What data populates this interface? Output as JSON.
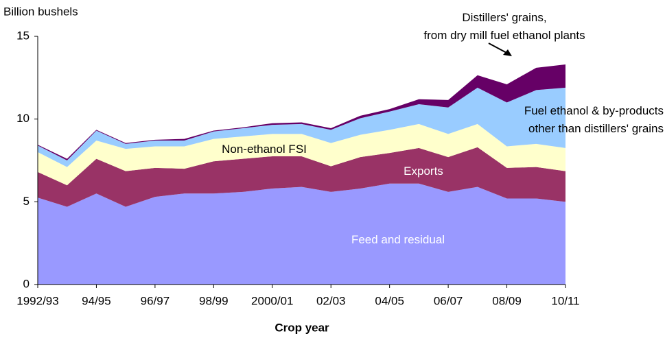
{
  "chart_data": {
    "type": "stacked-area",
    "y_label": "Billion bushels",
    "x_label": "Crop year",
    "categories": [
      "1992/93",
      null,
      "94/95",
      null,
      "96/97",
      null,
      "98/99",
      null,
      "2000/01",
      null,
      "02/03",
      null,
      "04/05",
      null,
      "06/07",
      null,
      "08/09",
      null,
      "10/11"
    ],
    "ylim": [
      0,
      15
    ],
    "yticks": [
      0,
      5,
      10,
      15
    ],
    "grid": false,
    "series": [
      {
        "name": "Feed and residual",
        "color": "#9999ff",
        "values": [
          5.25,
          4.7,
          5.5,
          4.7,
          5.3,
          5.5,
          5.5,
          5.6,
          5.8,
          5.9,
          5.6,
          5.8,
          6.1,
          6.1,
          5.6,
          5.9,
          5.2,
          5.2,
          5.0
        ]
      },
      {
        "name": "Exports",
        "color": "#993366",
        "values": [
          1.55,
          1.3,
          2.1,
          2.15,
          1.75,
          1.5,
          1.95,
          2.0,
          1.95,
          1.85,
          1.55,
          1.9,
          1.85,
          2.15,
          2.1,
          2.4,
          1.85,
          1.9,
          1.85
        ]
      },
      {
        "name": "Non-ethanol FSI",
        "color": "#ffffcc",
        "values": [
          1.2,
          1.1,
          1.1,
          1.35,
          1.3,
          1.35,
          1.35,
          1.35,
          1.35,
          1.35,
          1.4,
          1.35,
          1.4,
          1.45,
          1.4,
          1.4,
          1.3,
          1.4,
          1.4
        ]
      },
      {
        "name": "Fuel ethanol & by-products\nother than distillers' grains",
        "color": "#99ccff",
        "values": [
          0.4,
          0.4,
          0.6,
          0.3,
          0.35,
          0.35,
          0.45,
          0.5,
          0.55,
          0.6,
          0.8,
          1.0,
          1.1,
          1.2,
          1.6,
          2.2,
          2.65,
          3.25,
          3.65
        ]
      },
      {
        "name": "Distillers' grains,\nfrom dry mill fuel ethanol plants",
        "color": "#660066",
        "values": [
          0.05,
          0.1,
          0.05,
          0.05,
          0.05,
          0.1,
          0.05,
          0.05,
          0.1,
          0.1,
          0.1,
          0.15,
          0.15,
          0.3,
          0.45,
          0.75,
          1.1,
          1.35,
          1.4
        ]
      }
    ]
  }
}
